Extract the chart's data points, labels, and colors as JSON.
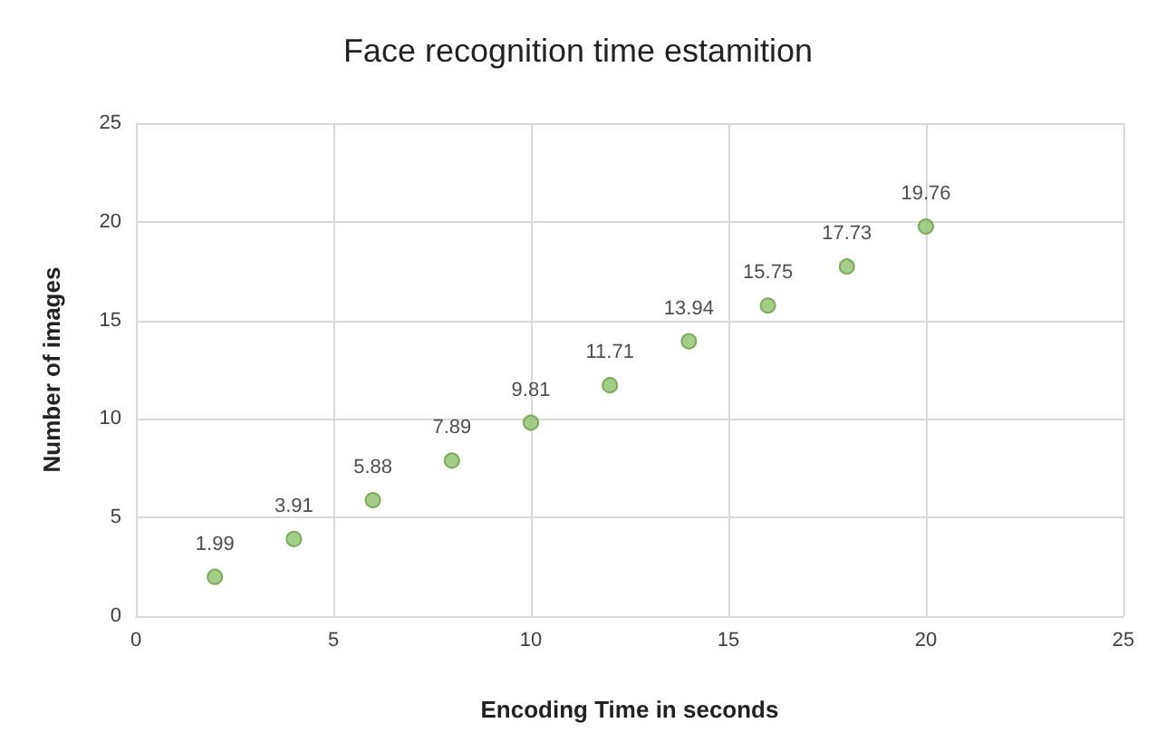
{
  "chart_data": {
    "type": "scatter",
    "title": "Face recognition time estamition",
    "xlabel": "Encoding Time in seconds",
    "ylabel": "Number of images",
    "x": [
      2,
      4,
      6,
      8,
      10,
      12,
      14,
      16,
      18,
      20
    ],
    "values": [
      1.99,
      3.91,
      5.88,
      7.89,
      9.81,
      11.71,
      13.94,
      15.75,
      17.73,
      19.76
    ],
    "color": "#8dc26a",
    "marker": "circle",
    "data_labels": true,
    "grid": true,
    "xlim": [
      0,
      25
    ],
    "xticks": [
      0,
      5,
      10,
      15,
      20,
      25
    ],
    "ylim": [
      0,
      25
    ],
    "yticks": [
      0,
      5,
      10,
      15,
      20,
      25
    ]
  }
}
